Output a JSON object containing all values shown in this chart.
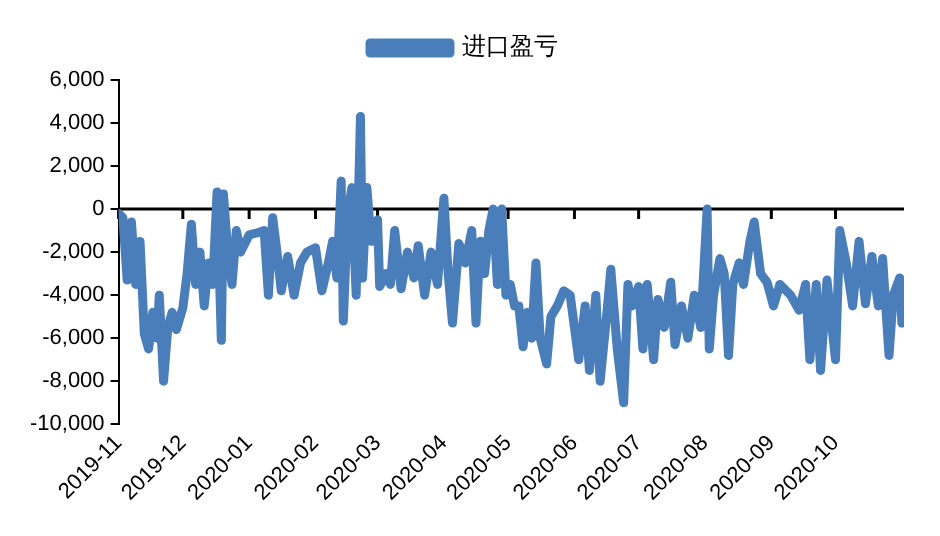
{
  "chart_data": {
    "type": "line",
    "legend": "top",
    "grid": false,
    "marker": "none",
    "line_style": "solid",
    "xlim": [
      "2019-11-01",
      "2020-11-02"
    ],
    "xticks": [
      "2019-11",
      "2019-12",
      "2020-01",
      "2020-02",
      "2020-03",
      "2020-04",
      "2020-05",
      "2020-06",
      "2020-07",
      "2020-08",
      "2020-09",
      "2020-10"
    ],
    "ylim": [
      -10000,
      6000
    ],
    "ref_lines": [
      {
        "axis": "y",
        "value": 0,
        "color": "#000000",
        "line_style": "solid"
      }
    ],
    "yticks": [
      {
        "value": -10000,
        "label": "-10,000"
      },
      {
        "value": -8000,
        "label": "-8,000"
      },
      {
        "value": -6000,
        "label": "-6,000"
      },
      {
        "value": -4000,
        "label": "-4,000"
      },
      {
        "value": -2000,
        "label": "-2,000"
      },
      {
        "value": 0,
        "label": "0"
      },
      {
        "value": 2000,
        "label": "2,000"
      },
      {
        "value": 4000,
        "label": "4,000"
      },
      {
        "value": 6000,
        "label": "6,000"
      }
    ],
    "series": [
      {
        "name": "进口盈亏",
        "color": "#4a7ebb",
        "x": [
          "2019-11-01",
          "2019-11-03",
          "2019-11-05",
          "2019-11-07",
          "2019-11-09",
          "2019-11-11",
          "2019-11-13",
          "2019-11-15",
          "2019-11-17",
          "2019-11-19",
          "2019-11-20",
          "2019-11-22",
          "2019-11-24",
          "2019-11-26",
          "2019-11-28",
          "2019-12-01",
          "2019-12-03",
          "2019-12-05",
          "2019-12-07",
          "2019-12-09",
          "2019-12-11",
          "2019-12-13",
          "2019-12-15",
          "2019-12-17",
          "2019-12-19",
          "2019-12-20",
          "2019-12-22",
          "2019-12-24",
          "2019-12-26",
          "2019-12-28",
          "2020-01-01",
          "2020-01-05",
          "2020-01-08",
          "2020-01-10",
          "2020-01-12",
          "2020-01-14",
          "2020-01-16",
          "2020-01-19",
          "2020-01-22",
          "2020-01-25",
          "2020-01-28",
          "2020-02-01",
          "2020-02-04",
          "2020-02-07",
          "2020-02-09",
          "2020-02-11",
          "2020-02-13",
          "2020-02-14",
          "2020-02-16",
          "2020-02-18",
          "2020-02-20",
          "2020-02-22",
          "2020-02-23",
          "2020-02-25",
          "2020-02-27",
          "2020-03-01",
          "2020-03-02",
          "2020-03-05",
          "2020-03-07",
          "2020-03-09",
          "2020-03-12",
          "2020-03-15",
          "2020-03-18",
          "2020-03-20",
          "2020-03-23",
          "2020-03-26",
          "2020-03-29",
          "2020-04-01",
          "2020-04-03",
          "2020-04-05",
          "2020-04-08",
          "2020-04-11",
          "2020-04-14",
          "2020-04-16",
          "2020-04-18",
          "2020-04-20",
          "2020-04-22",
          "2020-04-24",
          "2020-04-26",
          "2020-04-28",
          "2020-04-30",
          "2020-05-02",
          "2020-05-04",
          "2020-05-06",
          "2020-05-08",
          "2020-05-10",
          "2020-05-12",
          "2020-05-14",
          "2020-05-16",
          "2020-05-19",
          "2020-05-21",
          "2020-05-24",
          "2020-05-27",
          "2020-05-30",
          "2020-06-01",
          "2020-06-03",
          "2020-06-06",
          "2020-06-08",
          "2020-06-11",
          "2020-06-13",
          "2020-06-16",
          "2020-06-18",
          "2020-06-21",
          "2020-06-24",
          "2020-06-26",
          "2020-06-28",
          "2020-07-01",
          "2020-07-03",
          "2020-07-05",
          "2020-07-08",
          "2020-07-10",
          "2020-07-13",
          "2020-07-16",
          "2020-07-18",
          "2020-07-21",
          "2020-07-24",
          "2020-07-27",
          "2020-07-30",
          "2020-08-02",
          "2020-08-03",
          "2020-08-05",
          "2020-08-08",
          "2020-08-10",
          "2020-08-12",
          "2020-08-14",
          "2020-08-17",
          "2020-08-19",
          "2020-08-22",
          "2020-08-24",
          "2020-08-27",
          "2020-08-30",
          "2020-09-02",
          "2020-09-05",
          "2020-09-10",
          "2020-09-14",
          "2020-09-17",
          "2020-09-19",
          "2020-09-22",
          "2020-09-24",
          "2020-09-27",
          "2020-10-01",
          "2020-10-03",
          "2020-10-06",
          "2020-10-09",
          "2020-10-12",
          "2020-10-15",
          "2020-10-18",
          "2020-10-21",
          "2020-10-23",
          "2020-10-26",
          "2020-10-28",
          "2020-10-31",
          "2020-11-01",
          "2020-11-02"
        ],
        "values": [
          -200,
          -400,
          -3300,
          -600,
          -3500,
          -1500,
          -5800,
          -6500,
          -4800,
          -6000,
          -4000,
          -8000,
          -5500,
          -4800,
          -5600,
          -4600,
          -3000,
          -700,
          -3500,
          -2000,
          -4500,
          -2500,
          -3500,
          800,
          -6100,
          700,
          -2000,
          -3500,
          -1000,
          -2000,
          -1200,
          -1100,
          -1000,
          -4000,
          -400,
          -2000,
          -3800,
          -2200,
          -4000,
          -2500,
          -2000,
          -1800,
          -3800,
          -2500,
          -1500,
          -3200,
          1300,
          -5200,
          -300,
          1000,
          -4000,
          4300,
          -3200,
          1000,
          -1500,
          -500,
          -3600,
          -3000,
          -3500,
          -1000,
          -3700,
          -2000,
          -3200,
          -1700,
          -4000,
          -2000,
          -3500,
          500,
          -3000,
          -5300,
          -1600,
          -2500,
          -1000,
          -5300,
          -1500,
          -3000,
          -1000,
          0,
          -3500,
          0,
          -4000,
          -3500,
          -4500,
          -4500,
          -6400,
          -4800,
          -6000,
          -2500,
          -6000,
          -7200,
          -5000,
          -4500,
          -3800,
          -4000,
          -5500,
          -7000,
          -4500,
          -7500,
          -4000,
          -8000,
          -5000,
          -2800,
          -6500,
          -9000,
          -3500,
          -4500,
          -3600,
          -6500,
          -3500,
          -7000,
          -4200,
          -5500,
          -3400,
          -6300,
          -4500,
          -6000,
          -4000,
          -5500,
          0,
          -6500,
          -4000,
          -2300,
          -3000,
          -6800,
          -3500,
          -2500,
          -3500,
          -1500,
          -600,
          -3000,
          -3400,
          -4500,
          -3500,
          -4000,
          -4700,
          -3500,
          -7000,
          -3500,
          -7500,
          -3300,
          -7000,
          -1000,
          -2500,
          -4500,
          -1500,
          -4400,
          -2200,
          -4500,
          -2300,
          -6800,
          -4000,
          -3200,
          -5300,
          -4600
        ]
      }
    ]
  }
}
